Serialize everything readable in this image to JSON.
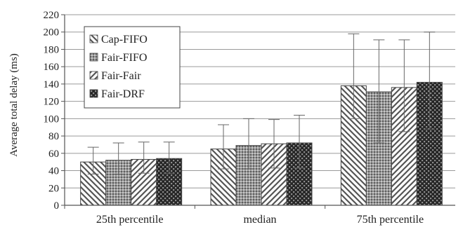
{
  "chart_data": {
    "type": "bar",
    "ylabel": "Average total delay (ms)",
    "xlabel": "",
    "ylim": [
      0,
      220
    ],
    "ytick_step": 20,
    "grid": true,
    "legend_position": "top-left",
    "categories": [
      "25th percentile",
      "median",
      "75th percentile"
    ],
    "series": [
      {
        "name": "Cap-FIFO",
        "pattern": "diagonal-down",
        "values": [
          50,
          65,
          138
        ],
        "error_upper": [
          67,
          93,
          198
        ],
        "error_lower": [
          36,
          42,
          100
        ]
      },
      {
        "name": "Fair-FIFO",
        "pattern": "dense-grid",
        "values": [
          52,
          69,
          131
        ],
        "error_upper": [
          72,
          100,
          191
        ],
        "error_lower": [
          36,
          42,
          72
        ]
      },
      {
        "name": "Fair-Fair",
        "pattern": "diagonal-up",
        "values": [
          53,
          71,
          136
        ],
        "error_upper": [
          73,
          99,
          191
        ],
        "error_lower": [
          37,
          43,
          85
        ]
      },
      {
        "name": "Fair-DRF",
        "pattern": "dark-check",
        "values": [
          54,
          72,
          142
        ],
        "error_upper": [
          73,
          104,
          200
        ],
        "error_lower": [
          37,
          43,
          88
        ]
      }
    ]
  }
}
